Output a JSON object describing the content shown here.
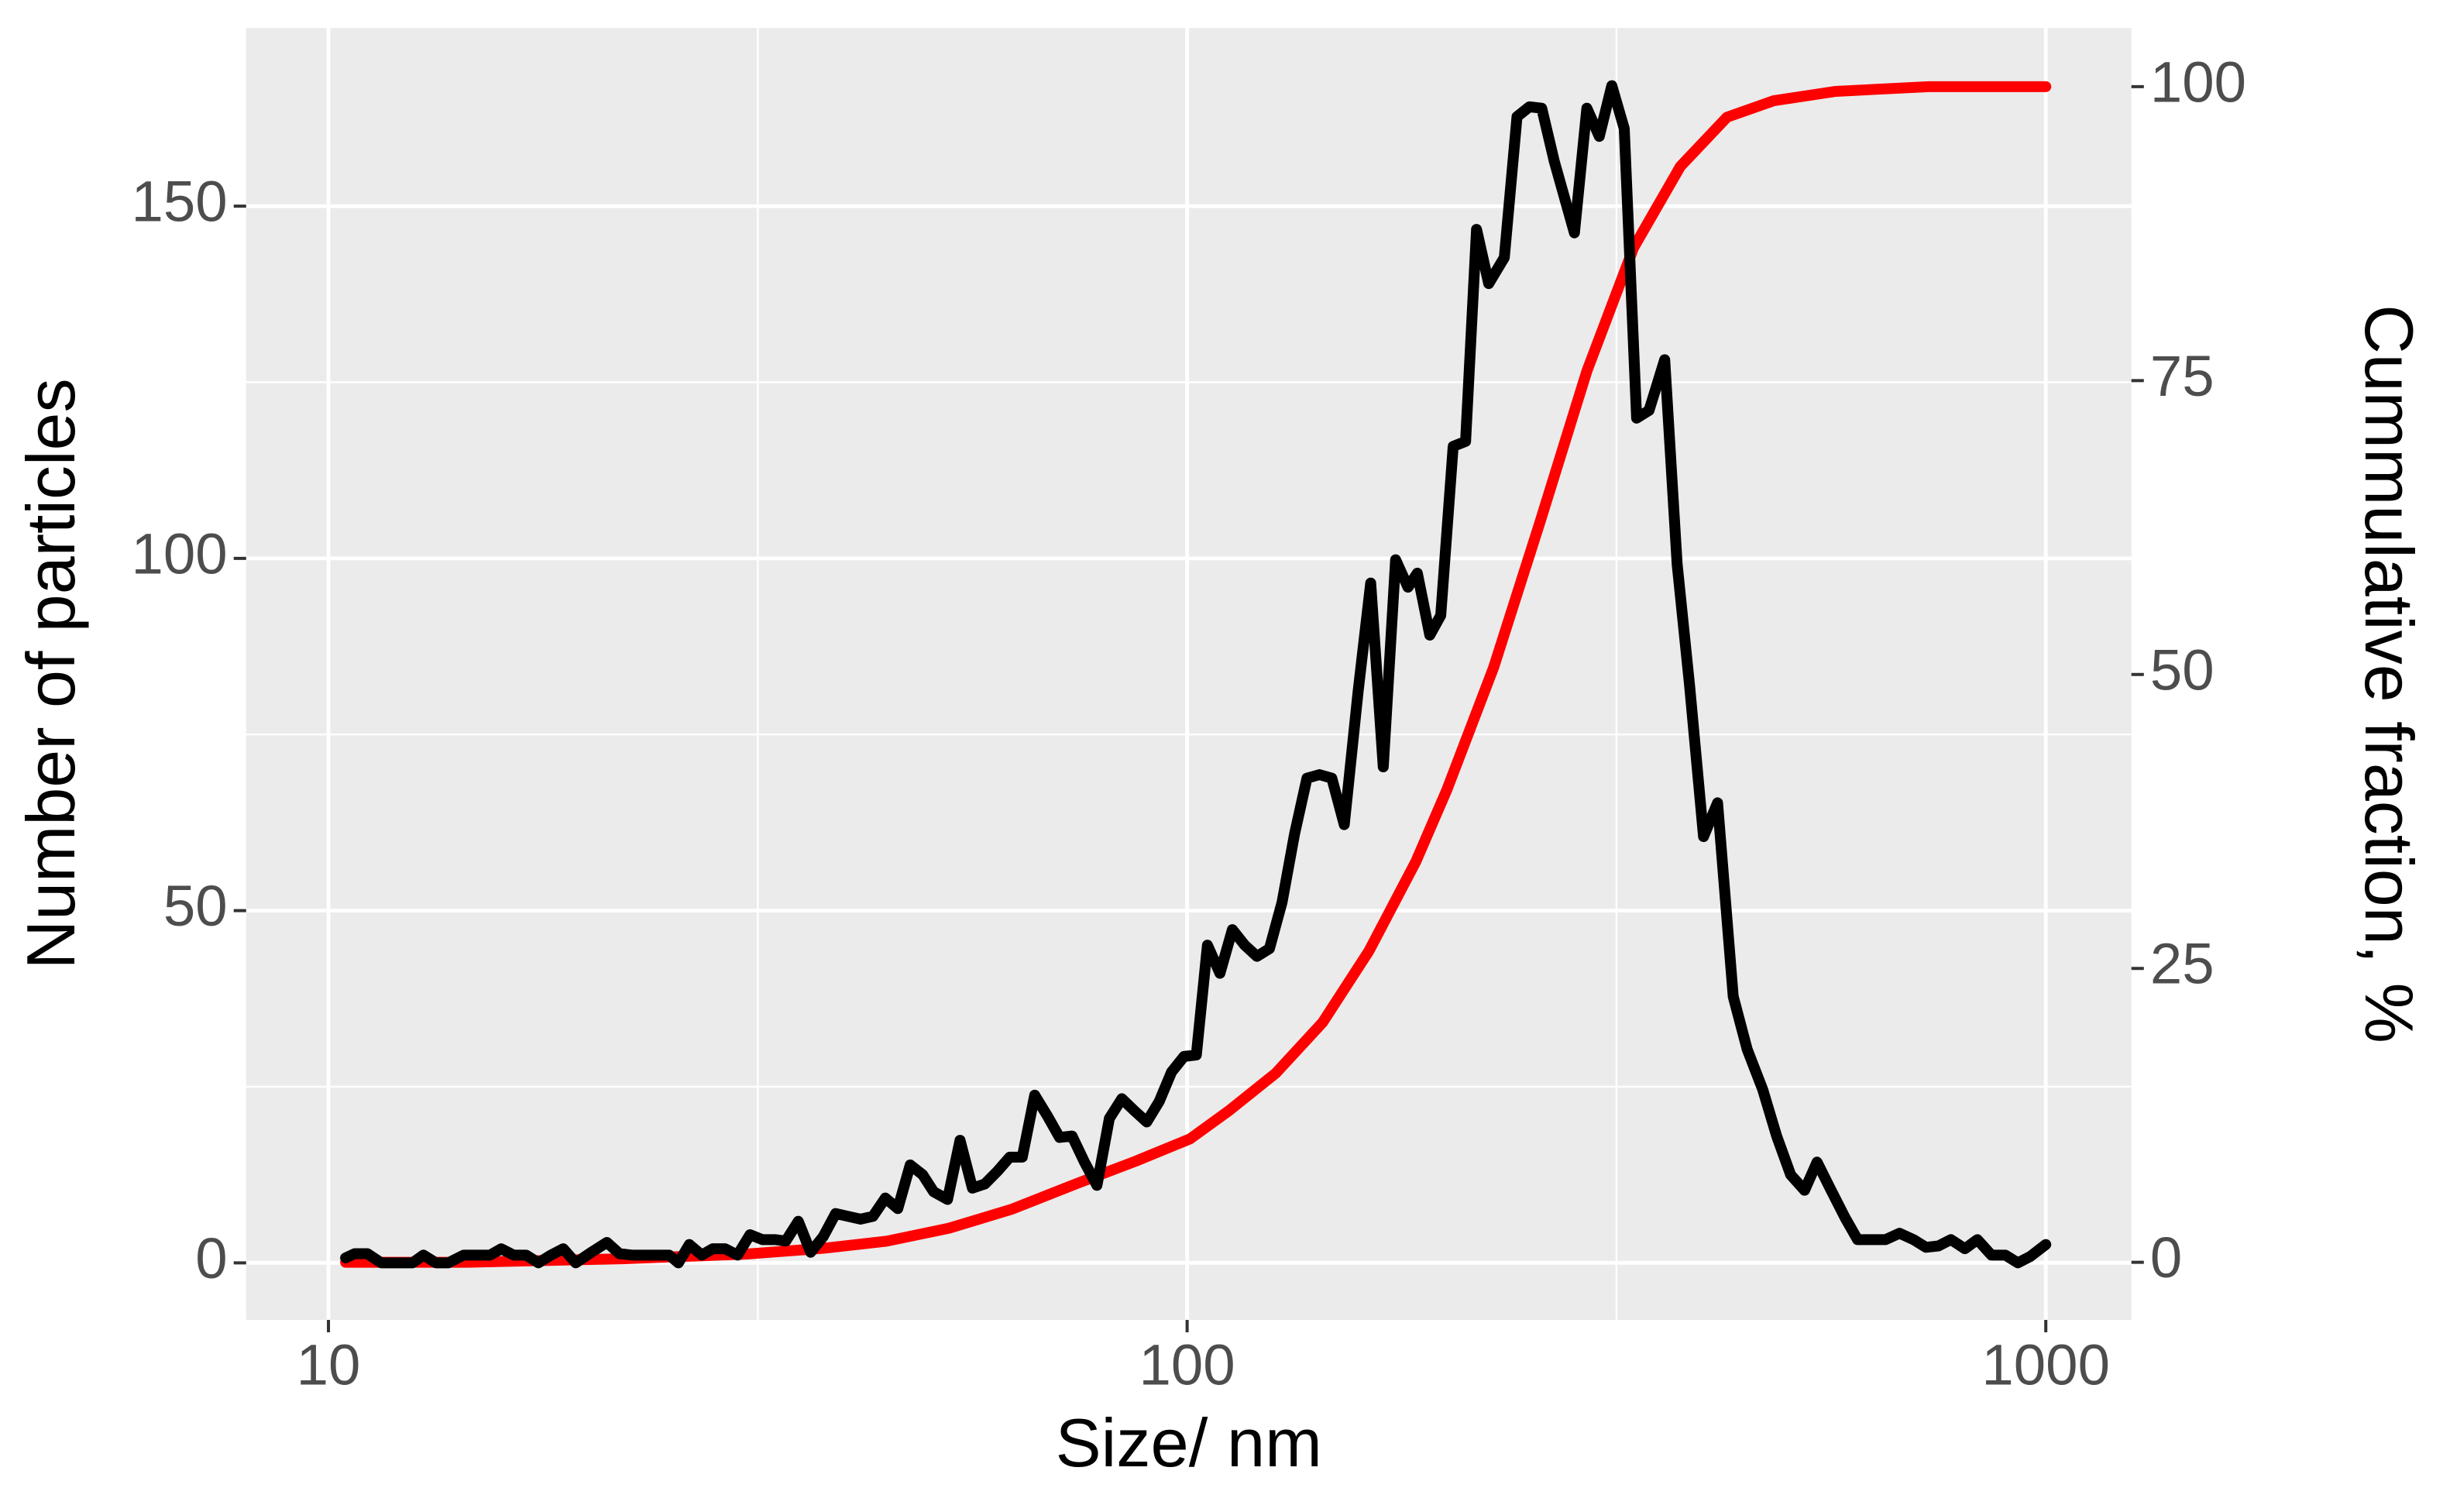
{
  "chart_data": {
    "type": "line",
    "x_label": "Size/ nm",
    "y_label": "Number of particles",
    "y2_label": "Cummulative fraction, %",
    "xscale": "log",
    "xlim": [
      8.02,
      1258
    ],
    "xticks": [
      10,
      100,
      1000
    ],
    "ylim": [
      -8.1,
      175.3
    ],
    "yticks": [
      0,
      50,
      100,
      150
    ],
    "y2lim": [
      -4.9,
      105
    ],
    "y2ticks": [
      0,
      25,
      50,
      75,
      100
    ],
    "grid": true,
    "series": [
      {
        "color": "#ff0000",
        "axis": "y2",
        "x": [
          10.47,
          14.5,
          22.0,
          30.7,
          37.8,
          44.7,
          52.8,
          62.4,
          73.8,
          87.1,
          100.8,
          111.9,
          126.9,
          143.8,
          162.9,
          184.7,
          200.7,
          227.5,
          257.7,
          292.1,
          331.1,
          375.2,
          425.3,
          481.9,
          569.4,
          731.3,
          1000
        ],
        "values": [
          0,
          0,
          0.3,
          0.7,
          1.2,
          1.8,
          2.9,
          4.5,
          6.6,
          8.6,
          10.5,
          12.9,
          16.1,
          20.4,
          26.5,
          34.1,
          40.2,
          50.6,
          63.0,
          75.8,
          86.3,
          93.2,
          97.4,
          98.8,
          99.6,
          100,
          100
        ]
      },
      {
        "color": "#000000",
        "x": [
          10.47,
          10.73,
          11.1,
          11.52,
          12.01,
          12.53,
          12.9,
          13.34,
          13.79,
          14.37,
          14.86,
          15.43,
          15.89,
          16.43,
          16.99,
          17.56,
          18.16,
          18.77,
          19.41,
          20.24,
          21.1,
          21.82,
          22.56,
          23.32,
          24.11,
          24.93,
          25.56,
          26.32,
          27.21,
          28.02,
          28.97,
          29.95,
          30.97,
          32.02,
          33.11,
          34.09,
          35.25,
          36.44,
          37.68,
          38.96,
          40.28,
          41.65,
          43.06,
          44.52,
          46.03,
          47.59,
          49.21,
          50.67,
          52.6,
          54.39,
          56.23,
          58.14,
          60.12,
          62.15,
          64.27,
          66.45,
          68.71,
          71.03,
          73.45,
          75.94,
          78.52,
          81.18,
          83.94,
          86.79,
          89.74,
          92.78,
          95.92,
          99.17,
          102.5,
          105.6,
          109.2,
          112.9,
          116.7,
          120.6,
          124.7,
          129.0,
          133.4,
          137.9,
          142.6,
          147.4,
          152.4,
          158.2,
          163.6,
          169.2,
          174.9,
          180.8,
          185.4,
          191.7,
          197.4,
          204.1,
          211.0,
          217.3,
          224.5,
          234.1,
          242.2,
          250.4,
          258.8,
          267.6,
          282.5,
          292.1,
          302.0,
          312.3,
          322.9,
          333.8,
          345.1,
          359.9,
          372.1,
          384.7,
          399.4,
          414.7,
          432.5,
          449.0,
          468.1,
          485.9,
          504.5,
          523.7,
          541.5,
          562.3,
          583.8,
          603.6,
          626.7,
          650.6,
          675.5,
          701.3,
          725.2,
          749.9,
          775.3,
          805.0,
          832.3,
          864.2,
          897.2,
          927.7,
          959.2,
          1000
        ],
        "values": [
          0.7,
          1.3,
          1.3,
          0,
          0,
          0,
          1.1,
          0,
          0,
          1.1,
          1.1,
          1.1,
          2.0,
          1.1,
          1.1,
          0,
          1.1,
          2.0,
          0,
          1.5,
          2.9,
          1.3,
          1.1,
          1.1,
          1.1,
          1.1,
          0,
          2.6,
          1.1,
          2.0,
          2.0,
          1.1,
          4.0,
          3.3,
          3.3,
          3.1,
          5.9,
          1.5,
          3.7,
          7.0,
          6.6,
          6.2,
          6.6,
          9.2,
          7.7,
          13.9,
          12.5,
          10.1,
          9.0,
          17.4,
          10.6,
          11.2,
          13.0,
          15.0,
          15.0,
          23.8,
          20.9,
          17.8,
          18.0,
          14.3,
          11.0,
          20.5,
          23.3,
          21.6,
          20.0,
          22.9,
          27.1,
          29.3,
          29.5,
          45.1,
          41.1,
          47.3,
          45.1,
          43.5,
          44.6,
          51.2,
          60.9,
          68.8,
          69.3,
          68.8,
          62.2,
          81.2,
          96.5,
          70.4,
          99.8,
          95.9,
          97.9,
          89.1,
          91.9,
          115.9,
          116.6,
          146.7,
          139.0,
          142.7,
          162.7,
          164.1,
          163.9,
          156.4,
          146.2,
          163.9,
          159.9,
          167.1,
          161.0,
          119.9,
          121.0,
          128.2,
          99.2,
          82.0,
          60.5,
          65.3,
          37.8,
          30.3,
          24.6,
          18.0,
          12.5,
          10.3,
          14.3,
          10.3,
          6.4,
          3.3,
          3.3,
          3.3,
          4.2,
          3.3,
          2.2,
          2.4,
          3.3,
          2.0,
          3.3,
          1.1,
          1.1,
          0,
          0.9,
          2.6
        ]
      }
    ]
  }
}
